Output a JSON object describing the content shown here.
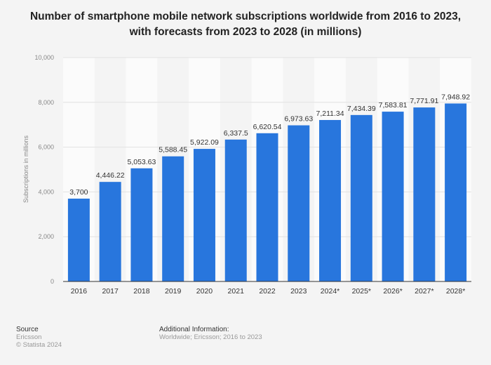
{
  "title_line1": "Number of smartphone mobile network subscriptions worldwide from 2016 to 2023,",
  "title_line2": "with forecasts from 2023 to 2028 (in millions)",
  "chart_data": {
    "type": "bar",
    "categories": [
      "2016",
      "2017",
      "2018",
      "2019",
      "2020",
      "2021",
      "2022",
      "2023",
      "2024*",
      "2025*",
      "2026*",
      "2027*",
      "2028*"
    ],
    "values": [
      3700,
      4446.22,
      5053.63,
      5588.45,
      5922.09,
      6337.5,
      6620.54,
      6973.63,
      7211.34,
      7434.39,
      7583.81,
      7771.91,
      7948.92
    ],
    "data_labels": [
      "3,700",
      "4,446.22",
      "5,053.63",
      "5,588.45",
      "5,922.09",
      "6,337.5",
      "6,620.54",
      "6,973.63",
      "7,211.34",
      "7,434.39",
      "7,583.81",
      "7,771.91",
      "7,948.92"
    ],
    "ylabel": "Subscriptions in millions",
    "ylim": [
      0,
      10000
    ],
    "yticks": [
      "0",
      "2,000",
      "4,000",
      "6,000",
      "8,000",
      "10,000"
    ],
    "grid": true,
    "bar_color": "#2876dd"
  },
  "footer": {
    "source_heading": "Source",
    "source": "Ericsson",
    "copyright": "© Statista 2024",
    "info_heading": "Additional Information:",
    "info": "Worldwide; Ericsson; 2016 to 2023"
  }
}
